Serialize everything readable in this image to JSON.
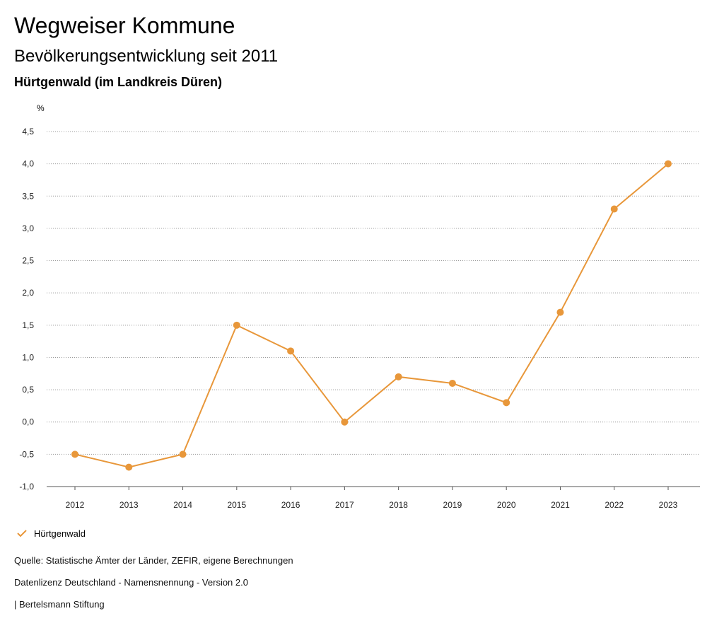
{
  "header": {
    "title": "Wegweiser Kommune",
    "subtitle": "Bevölkerungsentwicklung seit 2011",
    "region": "Hürtgenwald (im Landkreis Düren)"
  },
  "chart_data": {
    "type": "line",
    "title": "Bevölkerungsentwicklung seit 2011",
    "unit": "%",
    "xlabel": "",
    "ylabel": "%",
    "ylim": [
      -1.0,
      4.5
    ],
    "yticks": [
      "4,5",
      "4,0",
      "3,5",
      "3,0",
      "2,5",
      "2,0",
      "1,5",
      "1,0",
      "0,5",
      "0,0",
      "-0,5",
      "-1,0"
    ],
    "ytick_values": [
      4.5,
      4.0,
      3.5,
      3.0,
      2.5,
      2.0,
      1.5,
      1.0,
      0.5,
      0.0,
      -0.5,
      -1.0
    ],
    "categories": [
      "2012",
      "2013",
      "2014",
      "2015",
      "2016",
      "2017",
      "2018",
      "2019",
      "2020",
      "2021",
      "2022",
      "2023"
    ],
    "series": [
      {
        "name": "Hürtgenwald",
        "color": "#E8973A",
        "values": [
          -0.5,
          -0.7,
          -0.5,
          1.5,
          1.1,
          0.0,
          0.7,
          0.6,
          0.3,
          1.7,
          3.3,
          4.0
        ]
      }
    ],
    "grid": true,
    "legend": "bottom-left"
  },
  "legend": {
    "label": "Hürtgenwald",
    "icon": "check-icon"
  },
  "footer": {
    "source": "Quelle: Statistische Ämter der Länder, ZEFIR, eigene Berechnungen",
    "license": "Datenlizenz Deutschland - Namensnennung - Version 2.0",
    "publisher": "| Bertelsmann Stiftung"
  }
}
